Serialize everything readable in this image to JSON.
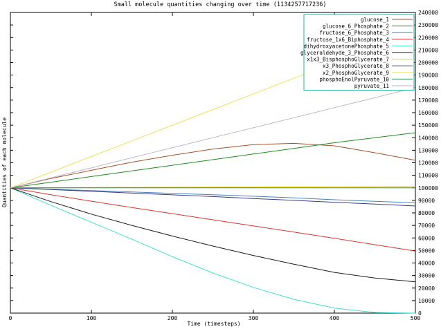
{
  "chart_data": {
    "type": "line",
    "title": "Small molecule quantities changing over time (1134257717236)",
    "xlabel": "Time (timesteps)",
    "ylabel": "Quantities of each molecule",
    "xlim": [
      0,
      500
    ],
    "ylim": [
      0,
      240000
    ],
    "x_ticks": [
      0,
      100,
      200,
      300,
      400,
      500
    ],
    "y_ticks": [
      0,
      10000,
      20000,
      30000,
      40000,
      50000,
      60000,
      70000,
      80000,
      90000,
      100000,
      110000,
      120000,
      130000,
      140000,
      150000,
      160000,
      170000,
      180000,
      190000,
      200000,
      210000,
      220000,
      230000,
      240000
    ],
    "y_axis_side": "right",
    "legend_position": "top-right",
    "grid": false,
    "x": [
      0,
      50,
      100,
      150,
      200,
      250,
      300,
      350,
      400,
      450,
      500
    ],
    "series": [
      {
        "name": "glucose_1",
        "color": "#a0522d",
        "values": [
          100000,
          107500,
          114000,
          120500,
          126000,
          131000,
          134500,
          135500,
          133500,
          128000,
          122000
        ]
      },
      {
        "name": "glucose_6_Phosphate_2",
        "color": "#228b22",
        "values": [
          100000,
          104500,
          109000,
          113500,
          118000,
          122500,
          127000,
          131500,
          136000,
          140000,
          144000
        ]
      },
      {
        "name": "fructose_6_Phosphate_3",
        "color": "#4682b4",
        "values": [
          100000,
          98900,
          97800,
          96700,
          95600,
          94500,
          93300,
          92000,
          90500,
          89200,
          88000
        ]
      },
      {
        "name": "fructose_1x6_Biphosphate_4",
        "color": "#e03030",
        "values": [
          100000,
          94500,
          89300,
          84300,
          79400,
          74500,
          69600,
          64700,
          59700,
          54600,
          49500
        ]
      },
      {
        "name": "dihydroxyacetonePhosphate_5",
        "color": "#40e0d0",
        "values": [
          100000,
          86000,
          72500,
          59000,
          45000,
          32000,
          20500,
          11000,
          4000,
          500,
          0
        ]
      },
      {
        "name": "glyceraldehyde_3_Phosphate_6",
        "color": "#1a1a1a",
        "values": [
          100000,
          89000,
          79000,
          70000,
          61500,
          53500,
          46000,
          39000,
          32500,
          28000,
          25000
        ]
      },
      {
        "name": "x1x3_BisphosphoGlycerate_7",
        "color": "#e8d000",
        "values": [
          100000,
          100100,
          100200,
          100300,
          100400,
          100500,
          100600,
          100700,
          100800,
          100900,
          101000
        ]
      },
      {
        "name": "x3_PhosphoGlycerate_8",
        "color": "#3a3a8a",
        "values": [
          100000,
          98600,
          97200,
          95800,
          94400,
          93000,
          91500,
          90000,
          88500,
          87000,
          85500
        ]
      },
      {
        "name": "x2_PhosphoGlycerate_9",
        "color": "#f0e060",
        "values": [
          100000,
          112500,
          125000,
          137500,
          150000,
          162500,
          175000,
          187500,
          200000,
          212500,
          225000
        ]
      },
      {
        "name": "phosphoEnolPyruvate_10",
        "color": "#2e8b57",
        "values": [
          100000,
          100000,
          100000,
          100000,
          100000,
          100000,
          100000,
          100000,
          100000,
          100000,
          100000
        ]
      },
      {
        "name": "pyruvate_11",
        "color": "#c0b0c8",
        "values": [
          100000,
          108000,
          116000,
          124000,
          132000,
          140000,
          148000,
          156000,
          164000,
          172000,
          180000
        ]
      }
    ],
    "colors": {
      "background": "#ffffff",
      "axis": "#000000",
      "legend_border": "#20b2aa"
    }
  }
}
